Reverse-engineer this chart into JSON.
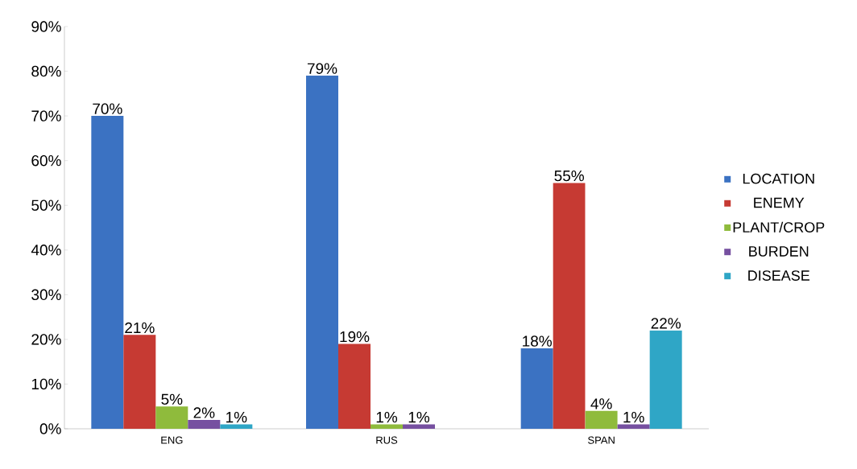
{
  "chart_data": {
    "type": "bar",
    "categories": [
      "ENG",
      "RUS",
      "SPAN"
    ],
    "series": [
      {
        "name": "LOCATION",
        "color": "#3b72c2",
        "values": [
          70,
          79,
          18
        ],
        "value_labels": [
          "70%",
          "79%",
          "18%"
        ]
      },
      {
        "name": "ENEMY",
        "color": "#c63a33",
        "values": [
          21,
          19,
          55
        ],
        "value_labels": [
          "21%",
          "19%",
          "55%"
        ]
      },
      {
        "name": "PLANT/CROP",
        "color": "#8fbb3c",
        "values": [
          5,
          1,
          4
        ],
        "value_labels": [
          "5%",
          "1%",
          "4%"
        ]
      },
      {
        "name": "BURDEN",
        "color": "#7650a0",
        "values": [
          2,
          1,
          1
        ],
        "value_labels": [
          "2%",
          "1%",
          "1%"
        ]
      },
      {
        "name": "DISEASE",
        "color": "#2fa6c6",
        "values": [
          1,
          null,
          22
        ],
        "value_labels": [
          "1%",
          null,
          "22%"
        ]
      }
    ],
    "ylim": [
      0,
      90
    ],
    "yticks": [
      {
        "value": 0,
        "label": "0%"
      },
      {
        "value": 10,
        "label": "10%"
      },
      {
        "value": 20,
        "label": "20%"
      },
      {
        "value": 30,
        "label": "30%"
      },
      {
        "value": 40,
        "label": "40%"
      },
      {
        "value": 50,
        "label": "50%"
      },
      {
        "value": 60,
        "label": "60%"
      },
      {
        "value": 70,
        "label": "70%"
      },
      {
        "value": 80,
        "label": "80%"
      },
      {
        "value": 90,
        "label": "90%"
      }
    ],
    "legend": "right"
  }
}
